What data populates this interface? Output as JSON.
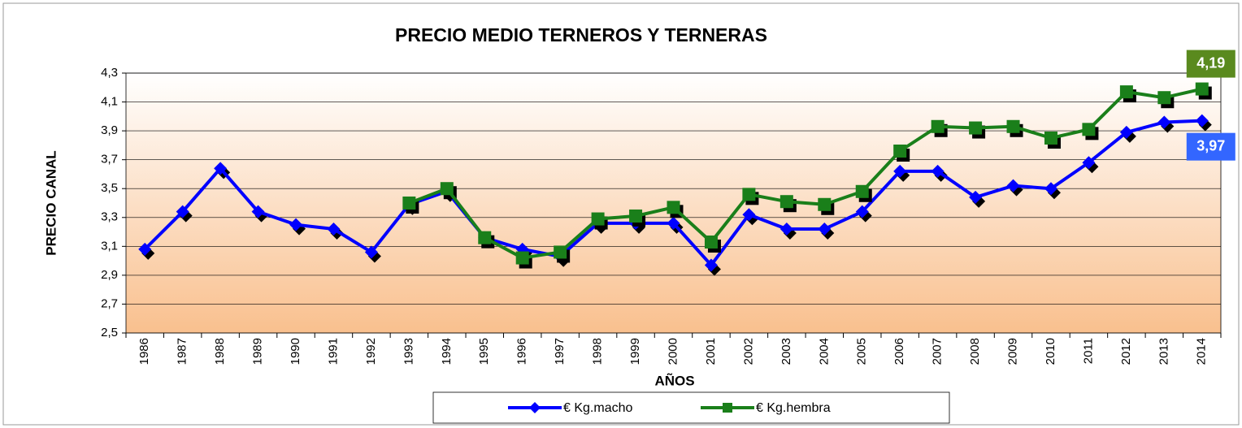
{
  "chart_data": {
    "type": "line",
    "title": "PRECIO MEDIO TERNEROS Y TERNERAS",
    "x_label": "AÑOS",
    "y_label": "PRECIO CANAL",
    "categories": [
      "1986",
      "1987",
      "1988",
      "1989",
      "1990",
      "1991",
      "1992",
      "1993",
      "1994",
      "1995",
      "1996",
      "1997",
      "1998",
      "1999",
      "2000",
      "2001",
      "2002",
      "2003",
      "2004",
      "2005",
      "2006",
      "2007",
      "2008",
      "2009",
      "2010",
      "2011",
      "2012",
      "2013",
      "2014"
    ],
    "series": [
      {
        "name": "€ Kg.macho",
        "color": "#0000ff",
        "marker": "diamond",
        "label_color": "#3366ff",
        "values": [
          3.08,
          3.34,
          3.64,
          3.34,
          3.25,
          3.22,
          3.06,
          3.39,
          3.48,
          3.16,
          3.08,
          3.03,
          3.26,
          3.26,
          3.26,
          2.97,
          3.32,
          3.22,
          3.22,
          3.34,
          3.62,
          3.62,
          3.44,
          3.52,
          3.5,
          3.68,
          3.89,
          3.96,
          3.97
        ],
        "value_labels": [
          null,
          null,
          null,
          null,
          null,
          null,
          null,
          null,
          null,
          null,
          null,
          null,
          null,
          null,
          null,
          null,
          null,
          null,
          null,
          null,
          null,
          null,
          null,
          null,
          null,
          null,
          null,
          null,
          "3,97"
        ]
      },
      {
        "name": "€ Kg.hembra",
        "color": "#1a7f1a",
        "marker": "square",
        "label_color": "#5a8a1e",
        "values": [
          null,
          null,
          null,
          null,
          null,
          null,
          null,
          3.4,
          3.5,
          3.16,
          3.02,
          3.06,
          3.29,
          3.31,
          3.37,
          3.13,
          3.46,
          3.41,
          3.39,
          3.48,
          3.76,
          3.93,
          3.92,
          3.93,
          3.85,
          3.91,
          4.17,
          4.13,
          4.19
        ],
        "value_labels": [
          null,
          null,
          null,
          null,
          null,
          null,
          null,
          null,
          null,
          null,
          null,
          null,
          null,
          null,
          null,
          null,
          null,
          null,
          null,
          null,
          null,
          null,
          null,
          null,
          null,
          null,
          null,
          null,
          "4,19"
        ]
      }
    ],
    "ylim": [
      2.5,
      4.3
    ],
    "yticks": [
      {
        "value": 2.5,
        "label": "2,5"
      },
      {
        "value": 2.7,
        "label": "2,7"
      },
      {
        "value": 2.9,
        "label": "2,9"
      },
      {
        "value": 3.1,
        "label": "3,1"
      },
      {
        "value": 3.3,
        "label": "3,3"
      },
      {
        "value": 3.5,
        "label": "3,5"
      },
      {
        "value": 3.7,
        "label": "3,7"
      },
      {
        "value": 3.9,
        "label": "3,9"
      },
      {
        "value": 4.1,
        "label": "4,1"
      },
      {
        "value": 4.3,
        "label": "4,3"
      }
    ],
    "grid": true,
    "legend": "bottom"
  }
}
